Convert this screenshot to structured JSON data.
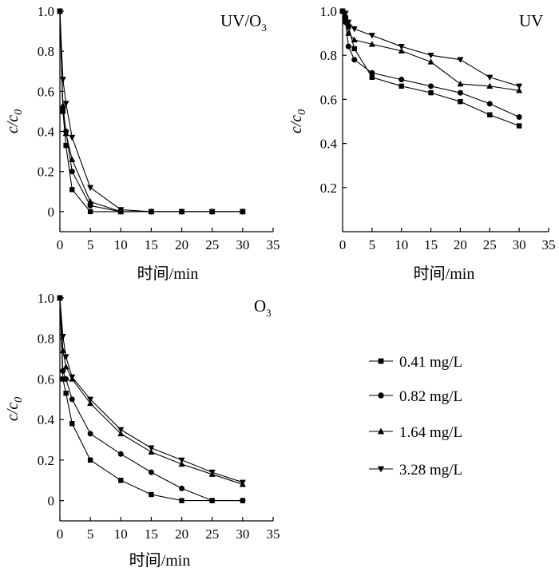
{
  "legend": {
    "entries": [
      "0.41 mg/L",
      "0.82 mg/L",
      "1.64 mg/L",
      "3.28 mg/L"
    ],
    "markers": [
      "square",
      "circle",
      "triangle-up",
      "triangle-down"
    ]
  },
  "chart_data": [
    {
      "type": "line",
      "title": "UV/O3",
      "title_main": "UV/O",
      "title_sub": "3",
      "xlabel": "时间/min",
      "ylabel_main": "c/c",
      "ylabel_sub": "0",
      "xlim": [
        0,
        35
      ],
      "ylim": [
        -0.1,
        1.0
      ],
      "xticks": [
        0,
        5,
        10,
        15,
        20,
        25,
        30,
        35
      ],
      "yticks": [
        0,
        0.2,
        0.4,
        0.6,
        0.8,
        1.0
      ],
      "ytick_labels": [
        "0",
        "0.2",
        "0.4",
        "0.6",
        "0.8",
        "1.0"
      ],
      "series": [
        {
          "name": "0.41 mg/L",
          "marker": "square",
          "x": [
            0,
            0.5,
            1,
            2,
            5,
            10,
            15,
            20,
            25,
            30
          ],
          "y": [
            1.0,
            0.5,
            0.33,
            0.11,
            0.0,
            0.0,
            0.0,
            0.0,
            0.0,
            0.0
          ]
        },
        {
          "name": "0.82 mg/L",
          "marker": "circle",
          "x": [
            0,
            0.5,
            1,
            2,
            5,
            10,
            15,
            20,
            25,
            30
          ],
          "y": [
            1.0,
            0.52,
            0.4,
            0.2,
            0.03,
            0.0,
            0.0,
            0.0,
            0.0,
            0.0
          ]
        },
        {
          "name": "1.64 mg/L",
          "marker": "triangle-up",
          "x": [
            0,
            0.5,
            1,
            2,
            5,
            10,
            15,
            20,
            25,
            30
          ],
          "y": [
            1.0,
            0.53,
            0.39,
            0.26,
            0.05,
            0.0,
            0.0,
            0.0,
            0.0,
            0.0
          ]
        },
        {
          "name": "3.28 mg/L",
          "marker": "triangle-down",
          "x": [
            0,
            0.5,
            1,
            2,
            5,
            10,
            15,
            20,
            25,
            30
          ],
          "y": [
            1.0,
            0.66,
            0.54,
            0.37,
            0.12,
            0.01,
            0.0,
            0.0,
            0.0,
            0.0
          ]
        }
      ]
    },
    {
      "type": "line",
      "title": "UV",
      "title_main": "UV",
      "title_sub": "",
      "xlabel": "时间/min",
      "ylabel_main": "c/c",
      "ylabel_sub": "0",
      "xlim": [
        0,
        35
      ],
      "ylim": [
        0,
        1.0
      ],
      "xticks": [
        0,
        5,
        10,
        15,
        20,
        25,
        30,
        35
      ],
      "yticks": [
        0.2,
        0.4,
        0.6,
        0.8,
        1.0
      ],
      "ytick_labels": [
        "0.2",
        "0.4",
        "0.6",
        "0.8",
        "1.0"
      ],
      "series": [
        {
          "name": "0.41 mg/L",
          "marker": "square",
          "x": [
            0,
            0.5,
            1,
            2,
            5,
            10,
            15,
            20,
            25,
            30
          ],
          "y": [
            1.0,
            0.97,
            0.93,
            0.83,
            0.7,
            0.66,
            0.63,
            0.59,
            0.53,
            0.48
          ]
        },
        {
          "name": "0.82 mg/L",
          "marker": "circle",
          "x": [
            0,
            0.5,
            1,
            2,
            5,
            10,
            15,
            20,
            25,
            30
          ],
          "y": [
            1.0,
            0.95,
            0.84,
            0.78,
            0.72,
            0.69,
            0.66,
            0.63,
            0.58,
            0.52
          ]
        },
        {
          "name": "1.64 mg/L",
          "marker": "triangle-up",
          "x": [
            0,
            0.5,
            1,
            2,
            5,
            10,
            15,
            20,
            25,
            30
          ],
          "y": [
            1.0,
            0.98,
            0.9,
            0.87,
            0.85,
            0.82,
            0.77,
            0.67,
            0.66,
            0.64
          ]
        },
        {
          "name": "3.28 mg/L",
          "marker": "triangle-down",
          "x": [
            0,
            0.5,
            1,
            2,
            5,
            10,
            15,
            20,
            25,
            30
          ],
          "y": [
            1.0,
            0.99,
            0.95,
            0.92,
            0.89,
            0.84,
            0.8,
            0.78,
            0.7,
            0.66
          ]
        }
      ]
    },
    {
      "type": "line",
      "title": "O3",
      "title_main": "O",
      "title_sub": "3",
      "xlabel": "时间/min",
      "ylabel_main": "c/c",
      "ylabel_sub": "0",
      "xlim": [
        0,
        35
      ],
      "ylim": [
        -0.1,
        1.0
      ],
      "xticks": [
        0,
        5,
        10,
        15,
        20,
        25,
        30,
        35
      ],
      "yticks": [
        0,
        0.2,
        0.4,
        0.6,
        0.8,
        1.0
      ],
      "ytick_labels": [
        "0",
        "0.2",
        "0.4",
        "0.6",
        "0.8",
        "1.0"
      ],
      "series": [
        {
          "name": "0.41 mg/L",
          "marker": "square",
          "x": [
            0,
            0.5,
            1,
            2,
            5,
            10,
            15,
            20,
            25,
            30
          ],
          "y": [
            1.0,
            0.6,
            0.53,
            0.38,
            0.2,
            0.1,
            0.03,
            0.0,
            0.0,
            0.0
          ]
        },
        {
          "name": "0.82 mg/L",
          "marker": "circle",
          "x": [
            0,
            0.5,
            1,
            2,
            5,
            10,
            15,
            20,
            25,
            30
          ],
          "y": [
            1.0,
            0.64,
            0.6,
            0.5,
            0.33,
            0.23,
            0.14,
            0.06,
            0.0,
            0.0
          ]
        },
        {
          "name": "1.64 mg/L",
          "marker": "triangle-up",
          "x": [
            0,
            0.5,
            1,
            2,
            5,
            10,
            15,
            20,
            25,
            30
          ],
          "y": [
            1.0,
            0.74,
            0.66,
            0.6,
            0.48,
            0.33,
            0.24,
            0.18,
            0.13,
            0.08
          ]
        },
        {
          "name": "3.28 mg/L",
          "marker": "triangle-down",
          "x": [
            0,
            0.5,
            1,
            2,
            5,
            10,
            15,
            20,
            25,
            30
          ],
          "y": [
            1.0,
            0.81,
            0.71,
            0.61,
            0.5,
            0.35,
            0.26,
            0.2,
            0.14,
            0.09
          ]
        }
      ]
    }
  ]
}
